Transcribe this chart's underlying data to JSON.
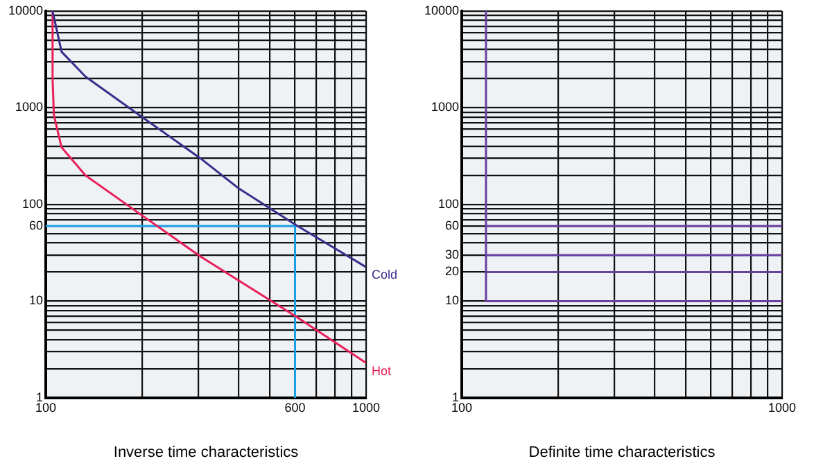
{
  "chart_data": [
    {
      "type": "line",
      "xlabel": "Inverse time characteristics",
      "log": "xy",
      "grid": true,
      "marker": "none",
      "line_style": "solid",
      "legend": false,
      "xlim": [
        100,
        1000
      ],
      "ylim": [
        1,
        10000
      ],
      "xticks": [
        100,
        {
          "value": 200,
          "label": null
        },
        {
          "value": 300,
          "label": null
        },
        {
          "value": 400,
          "label": null
        },
        {
          "value": 500,
          "label": null
        },
        600,
        {
          "value": 700,
          "label": null
        },
        {
          "value": 800,
          "label": null
        },
        {
          "value": 900,
          "label": null
        },
        1000
      ],
      "yticks": [
        1,
        {
          "value": 2,
          "label": null
        },
        {
          "value": 3,
          "label": null
        },
        {
          "value": 4,
          "label": null
        },
        {
          "value": 5,
          "label": null
        },
        {
          "value": 6,
          "label": null
        },
        {
          "value": 7,
          "label": null
        },
        {
          "value": 8,
          "label": null
        },
        {
          "value": 9,
          "label": null
        },
        10,
        {
          "value": 20,
          "label": null
        },
        {
          "value": 30,
          "label": null
        },
        {
          "value": 40,
          "label": null
        },
        {
          "value": 50,
          "label": null
        },
        60,
        {
          "value": 70,
          "label": null
        },
        {
          "value": 80,
          "label": null
        },
        {
          "value": 90,
          "label": null
        },
        100,
        {
          "value": 200,
          "label": null
        },
        {
          "value": 300,
          "label": null
        },
        {
          "value": 400,
          "label": null
        },
        {
          "value": 500,
          "label": null
        },
        {
          "value": 600,
          "label": null
        },
        {
          "value": 700,
          "label": null
        },
        {
          "value": 800,
          "label": null
        },
        {
          "value": 900,
          "label": null
        },
        1000,
        {
          "value": 2000,
          "label": null
        },
        {
          "value": 3000,
          "label": null
        },
        {
          "value": 4000,
          "label": null
        },
        {
          "value": 5000,
          "label": null
        },
        {
          "value": 6000,
          "label": null
        },
        {
          "value": 7000,
          "label": null
        },
        {
          "value": 8000,
          "label": null
        },
        {
          "value": 9000,
          "label": null
        },
        10000
      ],
      "series": [
        {
          "name": "Cold",
          "color": "#3a2d8c",
          "x": [
            105,
            112,
            133,
            201,
            304,
            401,
            606,
            1000
          ],
          "values": [
            10000,
            3800,
            2100,
            790,
            300,
            146,
            61,
            22.5
          ]
        },
        {
          "name": "Hot",
          "color": "#e8205a",
          "x": [
            105,
            105,
            106,
            112,
            133,
            201,
            304,
            606,
            1000
          ],
          "values": [
            10000,
            2000,
            840,
            390,
            200,
            76,
            29,
            6.9,
            2.3
          ]
        },
        {
          "color": "#1aa0e8",
          "x": [
            100,
            600,
            600
          ],
          "values": [
            60,
            60,
            1
          ]
        }
      ]
    },
    {
      "type": "line",
      "xlabel": "Definite time characteristics",
      "log": "xy",
      "grid": true,
      "marker": "none",
      "line_style": "solid",
      "legend": false,
      "xlim": [
        100,
        1000
      ],
      "ylim": [
        1,
        10000
      ],
      "xticks": [
        100,
        {
          "value": 200,
          "label": null
        },
        {
          "value": 300,
          "label": null
        },
        {
          "value": 400,
          "label": null
        },
        {
          "value": 500,
          "label": null
        },
        {
          "value": 600,
          "label": null
        },
        {
          "value": 700,
          "label": null
        },
        {
          "value": 800,
          "label": null
        },
        {
          "value": 900,
          "label": null
        },
        1000
      ],
      "yticks": [
        1,
        {
          "value": 2,
          "label": null
        },
        {
          "value": 3,
          "label": null
        },
        {
          "value": 4,
          "label": null
        },
        {
          "value": 5,
          "label": null
        },
        {
          "value": 6,
          "label": null
        },
        {
          "value": 7,
          "label": null
        },
        {
          "value": 8,
          "label": null
        },
        {
          "value": 9,
          "label": null
        },
        10,
        20,
        30,
        {
          "value": 40,
          "label": null
        },
        {
          "value": 50,
          "label": null
        },
        60,
        {
          "value": 70,
          "label": null
        },
        {
          "value": 80,
          "label": null
        },
        {
          "value": 90,
          "label": null
        },
        100,
        {
          "value": 200,
          "label": null
        },
        {
          "value": 300,
          "label": null
        },
        {
          "value": 400,
          "label": null
        },
        {
          "value": 500,
          "label": null
        },
        {
          "value": 600,
          "label": null
        },
        {
          "value": 700,
          "label": null
        },
        {
          "value": 800,
          "label": null
        },
        {
          "value": 900,
          "label": null
        },
        1000,
        {
          "value": 2000,
          "label": null
        },
        {
          "value": 3000,
          "label": null
        },
        {
          "value": 4000,
          "label": null
        },
        {
          "value": 5000,
          "label": null
        },
        {
          "value": 6000,
          "label": null
        },
        {
          "value": 7000,
          "label": null
        },
        {
          "value": 8000,
          "label": null
        },
        {
          "value": 9000,
          "label": null
        },
        10000
      ],
      "series": [
        {
          "color": "#6a3fa0",
          "x": [
            119,
            119,
            1000
          ],
          "values": [
            10000,
            10,
            10
          ]
        },
        {
          "color": "#6a3fa0",
          "x": [
            119,
            1000
          ],
          "values": [
            20,
            20
          ]
        },
        {
          "color": "#6a3fa0",
          "x": [
            119,
            1000
          ],
          "values": [
            30,
            30
          ]
        },
        {
          "color": "#6a3fa0",
          "x": [
            119,
            1000
          ],
          "values": [
            60,
            60
          ]
        }
      ]
    }
  ]
}
